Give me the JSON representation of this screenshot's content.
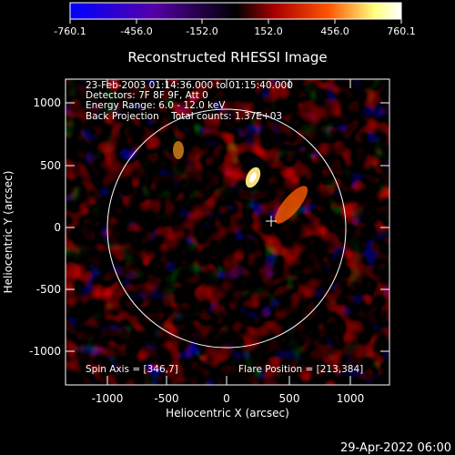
{
  "colorbar": {
    "ticks": [
      "-760.1",
      "-456.0",
      "-152.0",
      "152.0",
      "456.0",
      "760.1"
    ],
    "stops": [
      "#0000ff",
      "#5500aa",
      "#000000",
      "#aa0000",
      "#ff6600",
      "#ffff80",
      "#ffffff"
    ]
  },
  "title": "Reconstructed RHESSI Image",
  "info": {
    "line1": "23-Feb-2003 01:14:36.000 to 01:15:40.000",
    "line2": "Detectors: 7F 8F 9F, Att 0",
    "line3": "Energy Range: 6.0 - 12.0 keV",
    "line4": "Back Projection    Total counts: 1.37E+03"
  },
  "spin_axis": "Spin Axis = [346,7]",
  "flare_position": "Flare Position = [213,384]",
  "axes": {
    "xlabel": "Heliocentric X (arcsec)",
    "ylabel": "Heliocentric Y (arcsec)",
    "xticks": [
      "-1000",
      "-500",
      "0",
      "500",
      "1000"
    ],
    "yticks": [
      "1000",
      "500",
      "0",
      "-500",
      "-1000"
    ],
    "xlim": [
      -1280,
      1280
    ],
    "ylim": [
      -1280,
      1280
    ]
  },
  "timestamp": "29-Apr-2022 06:00"
}
